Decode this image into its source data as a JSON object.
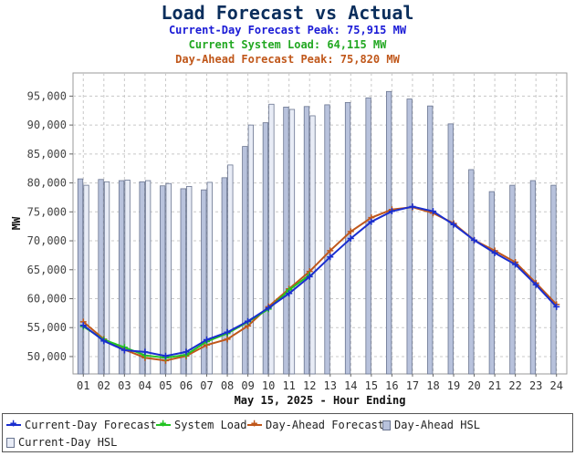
{
  "header": {
    "title": "Load Forecast vs Actual",
    "current_day_peak": "Current-Day Forecast Peak:  75,915 MW",
    "system_load": "Current System Load:  64,115 MW",
    "day_ahead_peak": "Day-Ahead Forecast Peak:  75,820 MW"
  },
  "colors": {
    "current_day_forecast": "#1a2ecf",
    "system_load": "#22c322",
    "day_ahead_forecast": "#c0571a",
    "day_ahead_hsl": "#b8c2dc",
    "current_day_hsl": "#e8ecf6"
  },
  "legend": {
    "items": [
      {
        "label": "Current-Day Forecast",
        "kind": "line",
        "color": "#1a2ecf"
      },
      {
        "label": "System Load",
        "kind": "line",
        "color": "#22c322"
      },
      {
        "label": "Day-Ahead Forecast",
        "kind": "line",
        "color": "#c0571a"
      },
      {
        "label": "Day-Ahead HSL",
        "kind": "box",
        "color": "#b8c2dc"
      },
      {
        "label": "Current-Day HSL",
        "kind": "box",
        "color": "#e8ecf6"
      }
    ]
  },
  "chart_data": {
    "type": "bar",
    "title": "Load Forecast vs Actual",
    "xlabel": "May 15, 2025 - Hour Ending",
    "ylabel": "MW",
    "ylim": [
      47000,
      99000
    ],
    "yticks": [
      50000,
      55000,
      60000,
      65000,
      70000,
      75000,
      80000,
      85000,
      90000,
      95000
    ],
    "ytick_labels": [
      "50,000",
      "55,000",
      "60,000",
      "65,000",
      "70,000",
      "75,000",
      "80,000",
      "85,000",
      "90,000",
      "95,000"
    ],
    "grid": true,
    "legend_position": "bottom",
    "categories": [
      "01",
      "02",
      "03",
      "04",
      "05",
      "06",
      "07",
      "08",
      "09",
      "10",
      "11",
      "12",
      "13",
      "14",
      "15",
      "16",
      "17",
      "18",
      "19",
      "20",
      "21",
      "22",
      "23",
      "24"
    ],
    "bar_series": [
      {
        "name": "Day-Ahead HSL",
        "values": [
          80700,
          80600,
          80400,
          80200,
          79500,
          79000,
          78800,
          80900,
          86300,
          90400,
          93100,
          93200,
          93500,
          93900,
          94700,
          95800,
          94500,
          93300,
          90200,
          82300,
          78500,
          79600,
          80400,
          79600
        ]
      },
      {
        "name": "Current-Day HSL",
        "values": [
          79600,
          80200,
          80500,
          80400,
          79900,
          79400,
          80100,
          83100,
          90000,
          93600,
          92700,
          91600,
          null,
          null,
          null,
          null,
          null,
          null,
          null,
          null,
          null,
          null,
          null,
          null
        ]
      }
    ],
    "series": [
      {
        "name": "Current-Day Forecast",
        "values": [
          55400,
          52700,
          51100,
          50800,
          50100,
          50800,
          52900,
          54200,
          56100,
          58400,
          60900,
          63800,
          67200,
          70400,
          73300,
          75100,
          75915,
          75100,
          72800,
          70100,
          67900,
          65900,
          62400,
          58600
        ]
      },
      {
        "name": "System Load",
        "values": [
          55200,
          52900,
          51600,
          50200,
          49800,
          50300,
          52600,
          54000,
          56000,
          58200,
          61500,
          64115,
          null,
          null,
          null,
          null,
          null,
          null,
          null,
          null,
          null,
          null,
          null,
          null
        ]
      },
      {
        "name": "Day-Ahead Forecast",
        "values": [
          56000,
          53000,
          51200,
          49800,
          49300,
          50100,
          52000,
          53000,
          55300,
          58600,
          61700,
          64700,
          68300,
          71600,
          74000,
          75400,
          75820,
          74800,
          73000,
          70100,
          68300,
          66300,
          62700,
          59000
        ]
      }
    ]
  }
}
